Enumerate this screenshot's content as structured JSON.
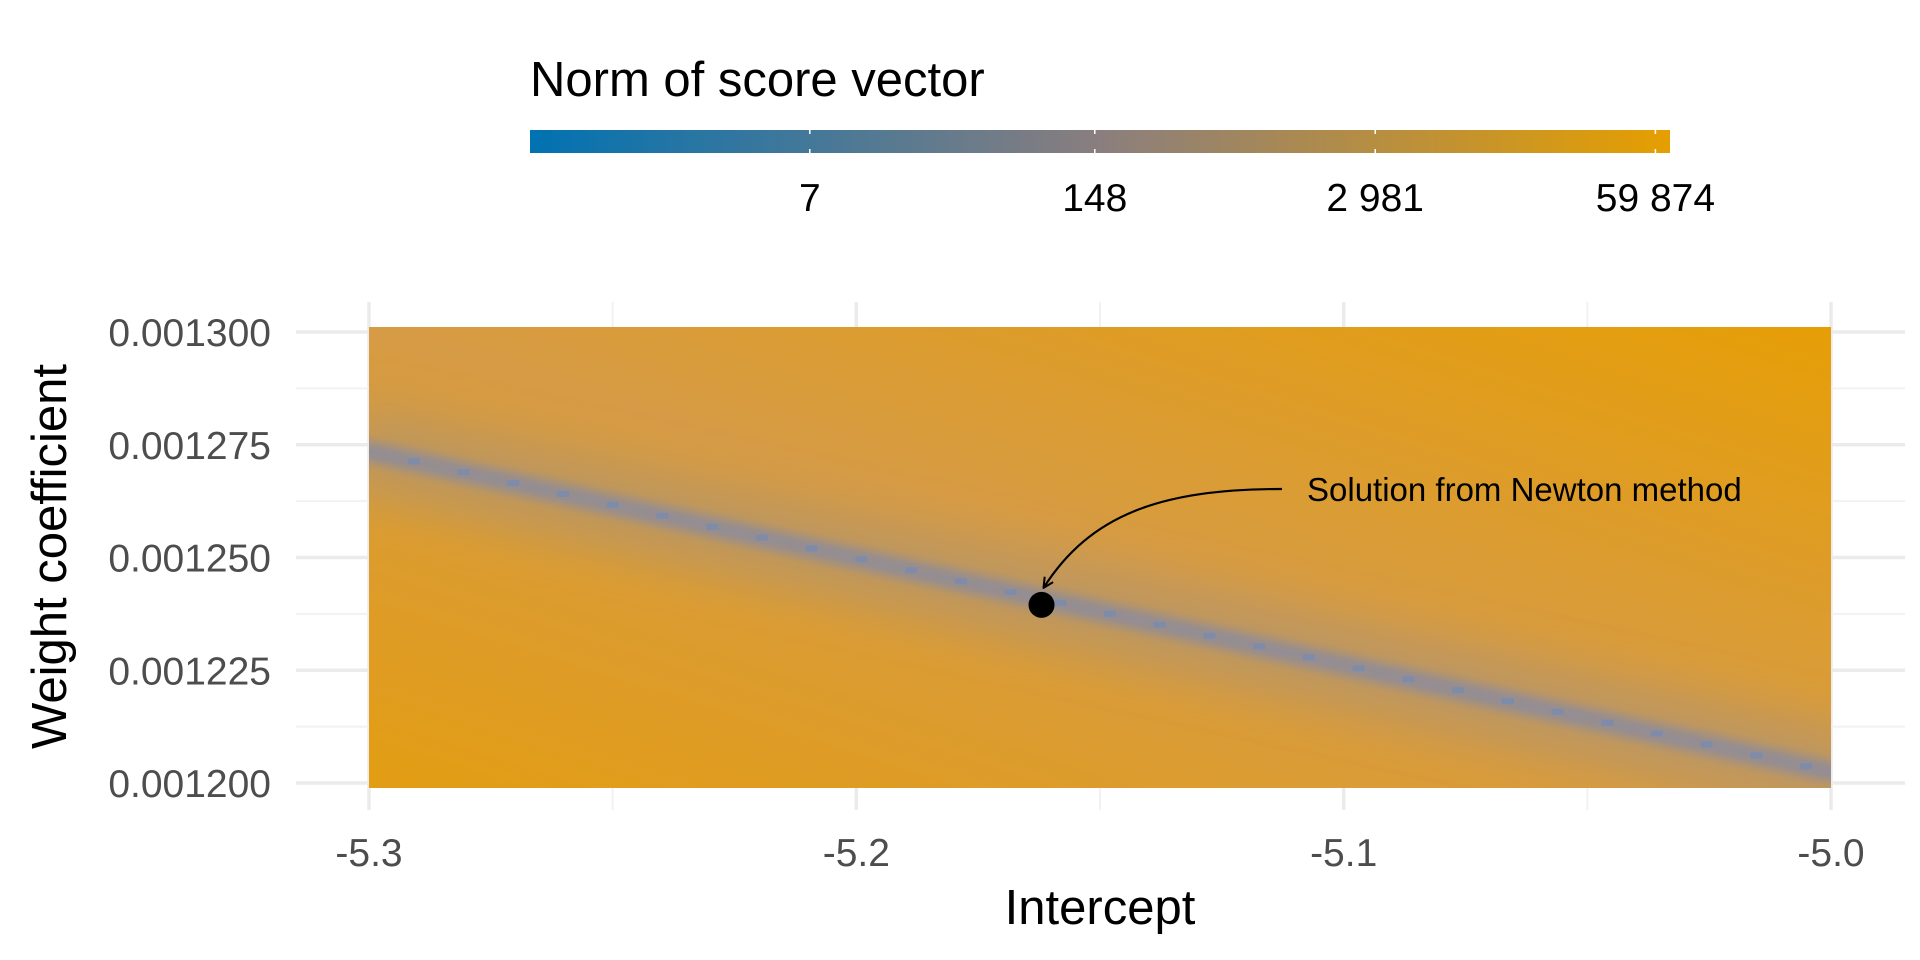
{
  "chart_data": {
    "type": "heatmap",
    "xlabel": "Intercept",
    "ylabel": "Weight coefficient",
    "xlim": [
      -5.3,
      -5.0
    ],
    "ylim": [
      0.0012,
      0.0013
    ],
    "x_ticks": [
      "-5.3",
      "-5.2",
      "-5.1",
      "-5.0"
    ],
    "x_tick_values": [
      -5.3,
      -5.2,
      -5.1,
      -5.0
    ],
    "y_ticks": [
      "0.001200",
      "0.001225",
      "0.001250",
      "0.001275",
      "0.001300"
    ],
    "y_tick_values": [
      0.0012,
      0.001225,
      0.00125,
      0.001275,
      0.0013
    ],
    "grid": true,
    "legend": {
      "title": "Norm of score vector",
      "position": "top",
      "scale": "log",
      "tick_labels": [
        "7",
        "148",
        "2 981",
        "59 874"
      ],
      "tick_values": [
        7,
        148,
        2981,
        59874
      ],
      "min_value": 0.35,
      "max_value": 70000,
      "color_low": "#0072b2",
      "color_mid": "#8a7e7e",
      "color_high": "#e69f00"
    },
    "minimum_valley": {
      "from": [
        -5.3,
        0.0012735
      ],
      "to": [
        -5.0,
        0.0012025
      ]
    },
    "solution_point": {
      "x": -5.162,
      "y": 0.0012395,
      "label": "Solution from Newton method"
    }
  }
}
